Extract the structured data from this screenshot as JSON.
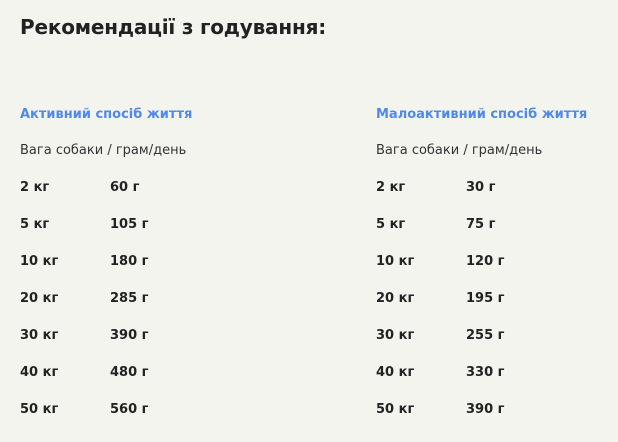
{
  "title": "Рекомендації з годування:",
  "colors": {
    "accent": "#4f8ae8",
    "background": "#f4f4ee"
  },
  "active": {
    "heading": "Активний спосіб життя",
    "header": "Вага собаки / грам/день",
    "rows": [
      {
        "weight": "2 кг",
        "amount": "60 г"
      },
      {
        "weight": "5 кг",
        "amount": "105 г"
      },
      {
        "weight": "10 кг",
        "amount": "180 г"
      },
      {
        "weight": "20 кг",
        "amount": "285 г"
      },
      {
        "weight": "30 кг",
        "amount": "390 г"
      },
      {
        "weight": "40 кг",
        "amount": "480 г"
      },
      {
        "weight": "50 кг",
        "amount": "560 г"
      }
    ]
  },
  "low_active": {
    "heading": "Малоактивний спосіб життя",
    "header": "Вага собаки / грам/день",
    "rows": [
      {
        "weight": "2 кг",
        "amount": "30 г"
      },
      {
        "weight": "5 кг",
        "amount": "75 г"
      },
      {
        "weight": "10 кг",
        "amount": "120 г"
      },
      {
        "weight": "20 кг",
        "amount": "195 г"
      },
      {
        "weight": "30 кг",
        "amount": "255 г"
      },
      {
        "weight": "40 кг",
        "amount": "330 г"
      },
      {
        "weight": "50 кг",
        "amount": "390 г"
      }
    ]
  }
}
